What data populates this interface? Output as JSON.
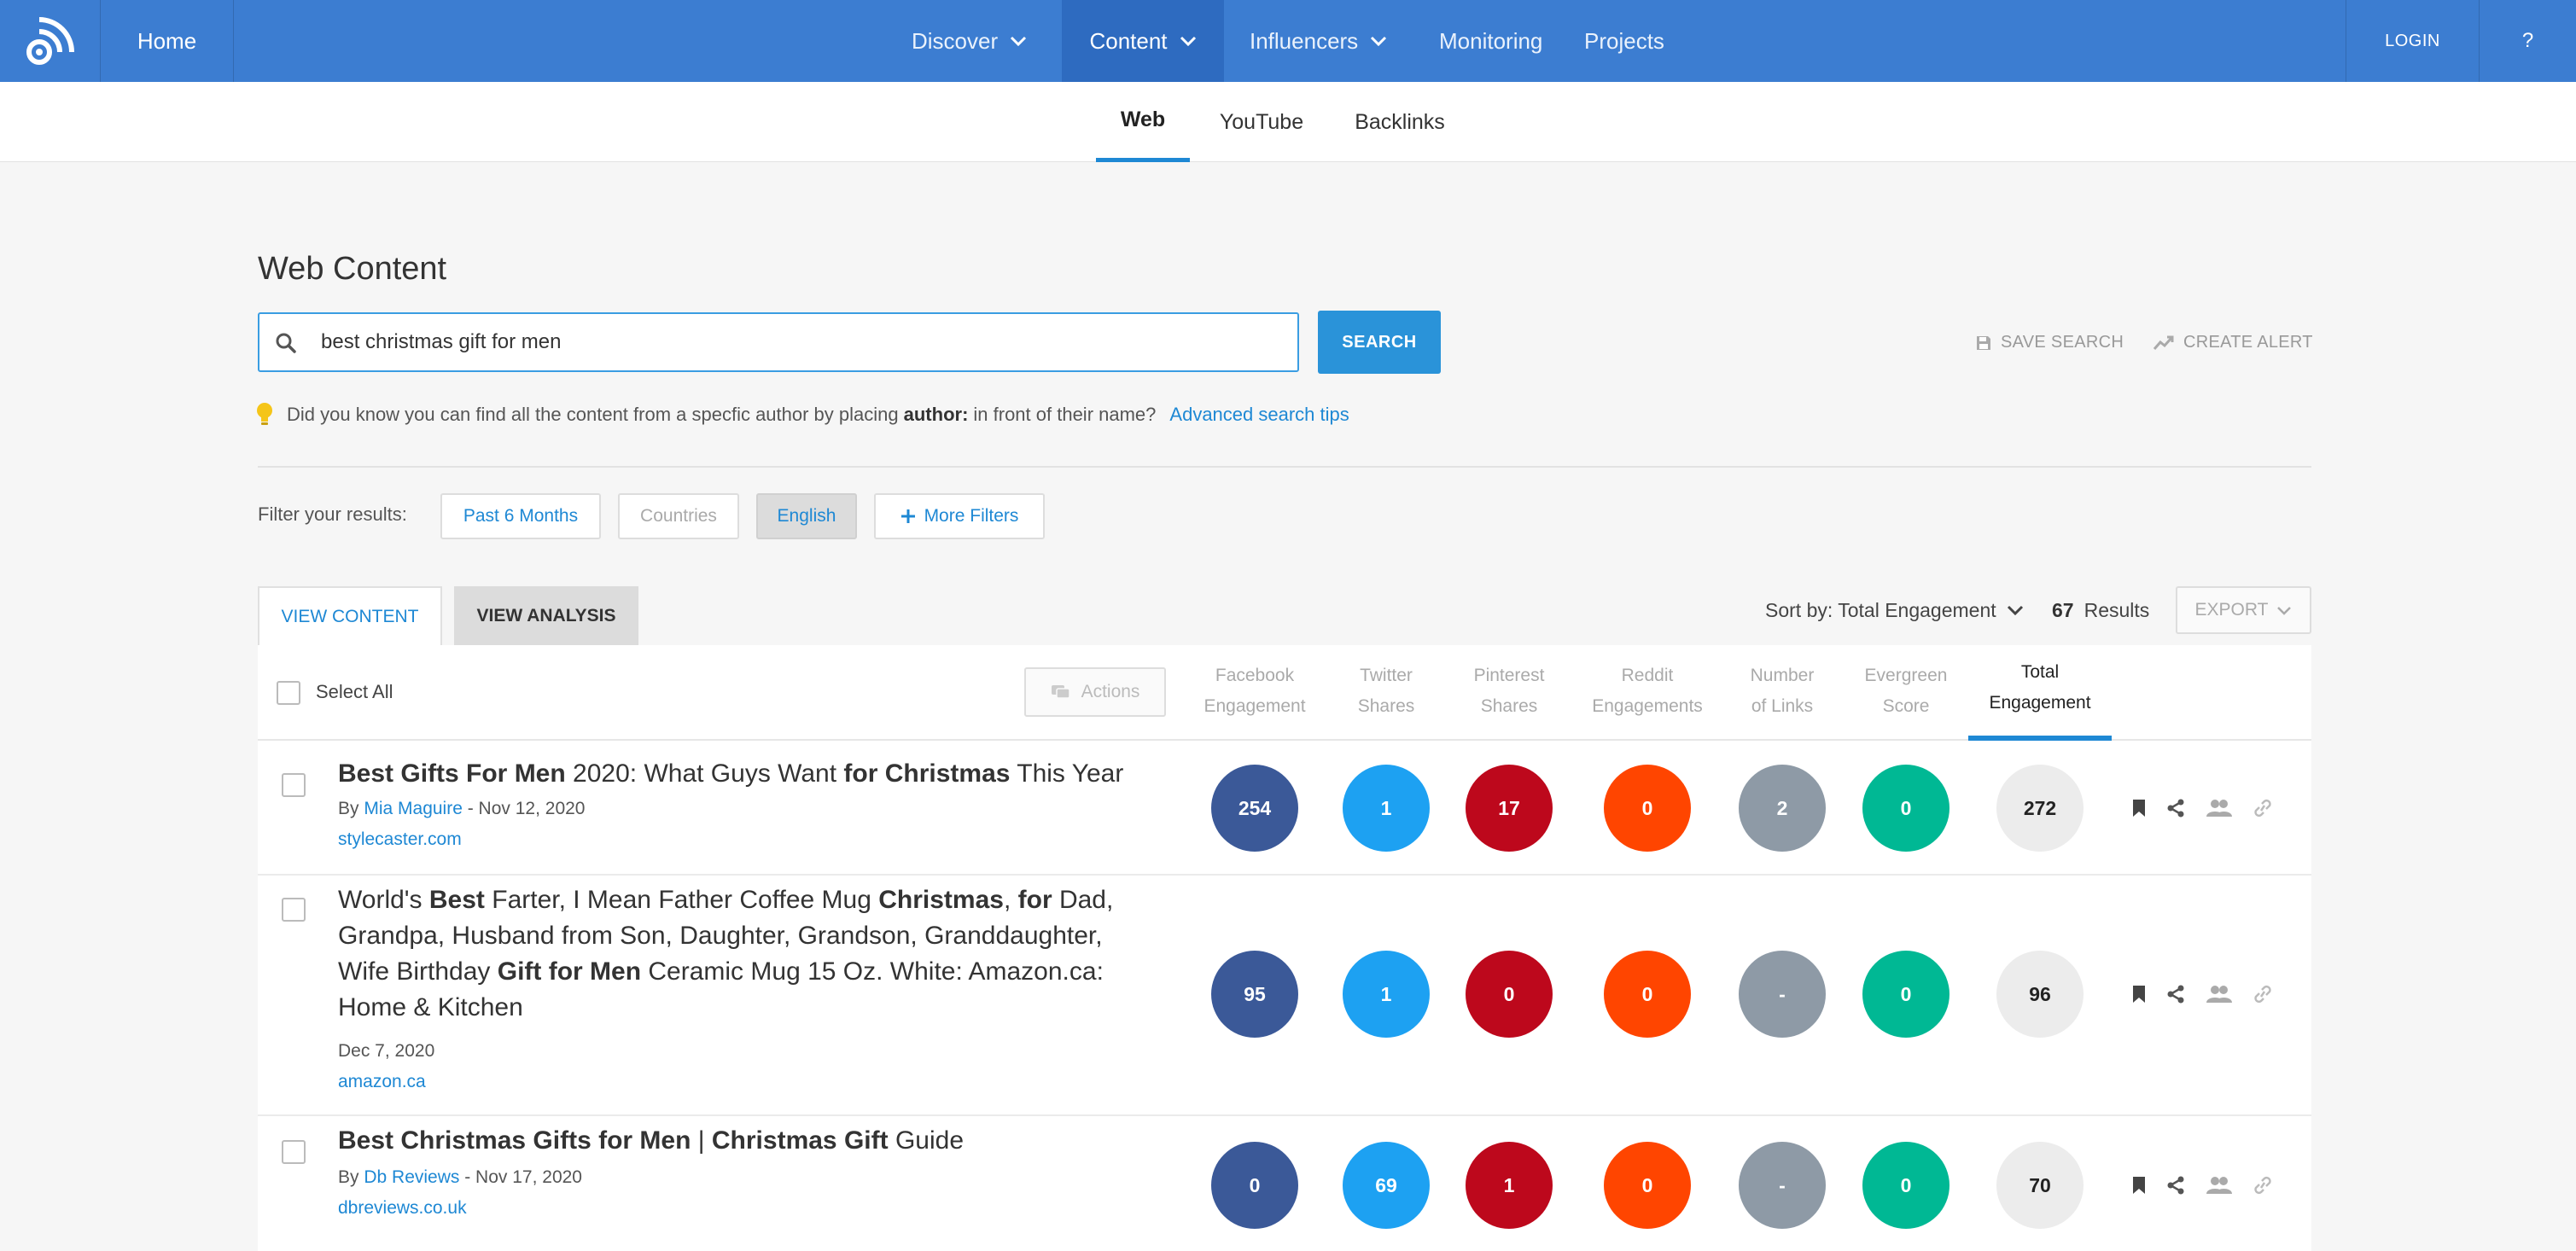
{
  "nav": {
    "home": "Home",
    "menus": [
      {
        "label": "Discover",
        "dropdown": true
      },
      {
        "label": "Content",
        "dropdown": true,
        "active": true
      },
      {
        "label": "Influencers",
        "dropdown": true
      },
      {
        "label": "Monitoring",
        "dropdown": false
      },
      {
        "label": "Projects",
        "dropdown": false
      }
    ],
    "login": "LOGIN",
    "help": "?"
  },
  "subnav": {
    "tabs": [
      "Web",
      "YouTube",
      "Backlinks"
    ],
    "active": "Web"
  },
  "page_title": "Web Content",
  "search": {
    "value": "best christmas gift for men",
    "button": "SEARCH"
  },
  "top_links": {
    "save_search": "SAVE SEARCH",
    "create_alert": "CREATE ALERT"
  },
  "tip": {
    "before": "Did you know you can find all the content from a specfic author by placing",
    "keyword": "author:",
    "after": "in front of their name?",
    "link": "Advanced search tips"
  },
  "filters": {
    "label": "Filter your results:",
    "items": [
      "Past 6 Months",
      "Countries",
      "English",
      "More Filters"
    ]
  },
  "view_tabs": {
    "content": "VIEW CONTENT",
    "analysis": "VIEW ANALYSIS"
  },
  "sort": {
    "label": "Sort by: Total Engagement",
    "count": "67",
    "results": "Results",
    "export": "EXPORT"
  },
  "table": {
    "select_all": "Select All",
    "actions": "Actions",
    "columns": [
      {
        "line1": "Facebook",
        "line2": "Engagement"
      },
      {
        "line1": "Twitter",
        "line2": "Shares"
      },
      {
        "line1": "Pinterest",
        "line2": "Shares"
      },
      {
        "line1": "Reddit",
        "line2": "Engagements"
      },
      {
        "line1": "Number",
        "line2": "of Links"
      },
      {
        "line1": "Evergreen",
        "line2": "Score"
      },
      {
        "line1": "Total",
        "line2": "Engagement"
      }
    ],
    "rows": [
      {
        "title": [
          {
            "t": "Best Gifts For Men",
            "b": true
          },
          {
            "t": " 2020: What Guys Want ",
            "b": false
          },
          {
            "t": "for Christmas",
            "b": true
          },
          {
            "t": " This Year",
            "b": false
          }
        ],
        "by": "By ",
        "author": "Mia Maguire",
        "date": " - Nov 12, 2020",
        "domain": "stylecaster.com",
        "values": [
          "254",
          "1",
          "17",
          "0",
          "2",
          "0",
          "272"
        ]
      },
      {
        "title": [
          {
            "t": "World's ",
            "b": false
          },
          {
            "t": "Best",
            "b": true
          },
          {
            "t": " Farter, I Mean Father Coffee Mug ",
            "b": false
          },
          {
            "t": "Christmas",
            "b": true
          },
          {
            "t": ", ",
            "b": false
          },
          {
            "t": "for",
            "b": true
          },
          {
            "t": " Dad, Grandpa, Husband from Son, Daughter, Grandson, Granddaughter, Wife Birthday ",
            "b": false
          },
          {
            "t": "Gift for Men",
            "b": true
          },
          {
            "t": " Ceramic Mug 15 Oz. White: Amazon.ca: Home & Kitchen",
            "b": false
          }
        ],
        "by": "",
        "author": "",
        "date": "Dec 7, 2020",
        "domain": "amazon.ca",
        "values": [
          "95",
          "1",
          "0",
          "0",
          "-",
          "0",
          "96"
        ]
      },
      {
        "title": [
          {
            "t": "Best Christmas Gifts for Men",
            "b": true
          },
          {
            "t": " | ",
            "b": false
          },
          {
            "t": "Christmas Gift",
            "b": true
          },
          {
            "t": " Guide",
            "b": false
          }
        ],
        "by": "By ",
        "author": "Db Reviews",
        "date": " - Nov 17, 2020",
        "domain": "dbreviews.co.uk",
        "values": [
          "0",
          "69",
          "1",
          "0",
          "-",
          "0",
          "70"
        ]
      }
    ]
  },
  "colors": {
    "nav": "#3c7dd1",
    "accent": "#1e88d4",
    "facebook": "#3b5998",
    "twitter": "#1da1f2",
    "pinterest": "#bd081c",
    "reddit": "#ff4500",
    "links": "#8e9aa6",
    "evergreen": "#00b894",
    "total": "#ececec"
  },
  "icons": [
    "logo-icon",
    "chevron-down-icon",
    "search-icon",
    "save-icon",
    "trend-icon",
    "bulb-icon",
    "plus-icon",
    "comment-icon",
    "bookmark-icon",
    "share-icon",
    "users-icon",
    "link-icon"
  ]
}
